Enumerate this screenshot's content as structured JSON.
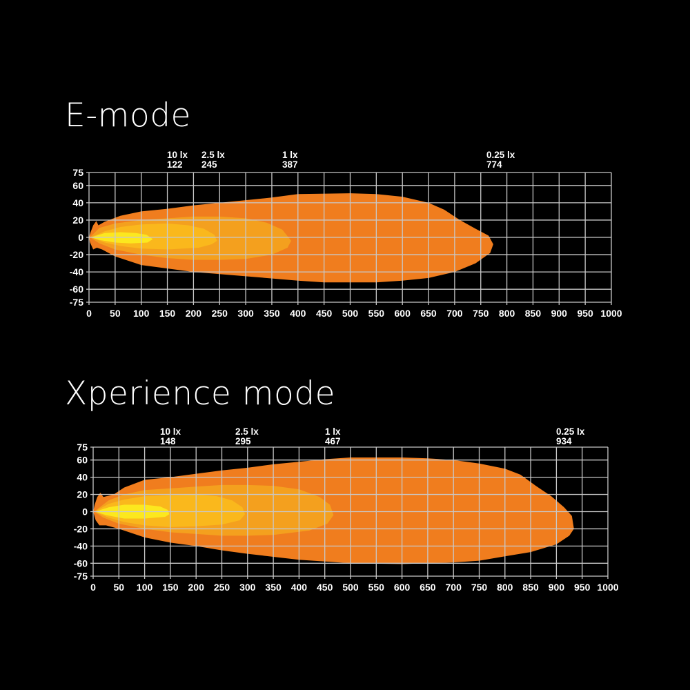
{
  "colors": {
    "background": "#000000",
    "grid": "#c8c8c8",
    "text": "#ffffff"
  },
  "chart_data": [
    {
      "type": "area",
      "title": "E-mode",
      "xlim": [
        0,
        1000
      ],
      "ylim": [
        -75,
        75
      ],
      "grid": true,
      "x_ticks": [
        0,
        50,
        100,
        150,
        200,
        250,
        300,
        350,
        400,
        450,
        500,
        550,
        600,
        650,
        700,
        750,
        800,
        850,
        900,
        950,
        1000
      ],
      "y_ticks": [
        75,
        60,
        40,
        20,
        0,
        -20,
        -40,
        -60,
        -75
      ],
      "annotations": [
        {
          "lux": "10 lx",
          "distance": "122"
        },
        {
          "lux": "2.5 lx",
          "distance": "245"
        },
        {
          "lux": "1 lx",
          "distance": "387"
        },
        {
          "lux": "0.25 lx",
          "distance": "774"
        }
      ],
      "contours": [
        {
          "lux": 0.25,
          "color": "#f07d1e",
          "points": [
            [
              0,
              0
            ],
            [
              3,
              6
            ],
            [
              8,
              14
            ],
            [
              14,
              19
            ],
            [
              18,
              14
            ],
            [
              30,
              18
            ],
            [
              60,
              25
            ],
            [
              100,
              30
            ],
            [
              150,
              33
            ],
            [
              200,
              37
            ],
            [
              250,
              40
            ],
            [
              300,
              43
            ],
            [
              350,
              46
            ],
            [
              400,
              50
            ],
            [
              500,
              51
            ],
            [
              550,
              50
            ],
            [
              600,
              47
            ],
            [
              650,
              40
            ],
            [
              680,
              32
            ],
            [
              710,
              20
            ],
            [
              740,
              10
            ],
            [
              765,
              2
            ],
            [
              774,
              -8
            ],
            [
              768,
              -18
            ],
            [
              740,
              -30
            ],
            [
              700,
              -40
            ],
            [
              650,
              -47
            ],
            [
              600,
              -50
            ],
            [
              550,
              -52
            ],
            [
              450,
              -52
            ],
            [
              400,
              -50
            ],
            [
              300,
              -45
            ],
            [
              200,
              -40
            ],
            [
              150,
              -36
            ],
            [
              100,
              -32
            ],
            [
              50,
              -22
            ],
            [
              25,
              -14
            ],
            [
              15,
              -12
            ],
            [
              8,
              -14
            ],
            [
              2,
              -6
            ]
          ]
        },
        {
          "lux": 1,
          "color": "#f4a01e",
          "points": [
            [
              2,
              0
            ],
            [
              20,
              11
            ],
            [
              50,
              16
            ],
            [
              100,
              20
            ],
            [
              150,
              22
            ],
            [
              200,
              24
            ],
            [
              250,
              24
            ],
            [
              300,
              22
            ],
            [
              340,
              17
            ],
            [
              370,
              9
            ],
            [
              387,
              -4
            ],
            [
              380,
              -12
            ],
            [
              350,
              -20
            ],
            [
              300,
              -25
            ],
            [
              250,
              -26
            ],
            [
              200,
              -26
            ],
            [
              150,
              -24
            ],
            [
              100,
              -20
            ],
            [
              50,
              -14
            ],
            [
              20,
              -7
            ]
          ]
        },
        {
          "lux": 2.5,
          "color": "#fab81c",
          "points": [
            [
              3,
              0
            ],
            [
              30,
              7
            ],
            [
              60,
              12
            ],
            [
              100,
              15
            ],
            [
              150,
              16
            ],
            [
              190,
              14
            ],
            [
              220,
              10
            ],
            [
              240,
              3
            ],
            [
              245,
              -4
            ],
            [
              235,
              -8
            ],
            [
              210,
              -12
            ],
            [
              150,
              -14
            ],
            [
              100,
              -13
            ],
            [
              60,
              -10
            ],
            [
              30,
              -6
            ]
          ]
        },
        {
          "lux": 10,
          "color": "#fce81e",
          "points": [
            [
              4,
              0
            ],
            [
              30,
              5
            ],
            [
              60,
              6
            ],
            [
              90,
              5
            ],
            [
              110,
              3
            ],
            [
              122,
              -2
            ],
            [
              112,
              -6
            ],
            [
              80,
              -7
            ],
            [
              50,
              -6
            ],
            [
              20,
              -3
            ]
          ]
        }
      ]
    },
    {
      "type": "area",
      "title": "Xperience mode",
      "xlim": [
        0,
        1000
      ],
      "ylim": [
        -75,
        75
      ],
      "grid": true,
      "x_ticks": [
        0,
        50,
        100,
        150,
        200,
        250,
        300,
        350,
        400,
        450,
        500,
        550,
        600,
        650,
        700,
        750,
        800,
        850,
        900,
        950,
        1000
      ],
      "y_ticks": [
        75,
        60,
        40,
        20,
        0,
        -20,
        -40,
        -60,
        -75
      ],
      "annotations": [
        {
          "lux": "10 lx",
          "distance": "148"
        },
        {
          "lux": "2.5 lx",
          "distance": "295"
        },
        {
          "lux": "1 lx",
          "distance": "467"
        },
        {
          "lux": "0.25 lx",
          "distance": "934"
        }
      ],
      "contours": [
        {
          "lux": 0.25,
          "color": "#f07d1e",
          "points": [
            [
              0,
              0
            ],
            [
              3,
              8
            ],
            [
              8,
              17
            ],
            [
              14,
              22
            ],
            [
              20,
              17
            ],
            [
              40,
              20
            ],
            [
              60,
              28
            ],
            [
              100,
              37
            ],
            [
              150,
              40
            ],
            [
              200,
              44
            ],
            [
              250,
              48
            ],
            [
              300,
              51
            ],
            [
              350,
              55
            ],
            [
              400,
              58
            ],
            [
              450,
              61
            ],
            [
              500,
              63
            ],
            [
              600,
              63
            ],
            [
              650,
              62
            ],
            [
              700,
              60
            ],
            [
              750,
              56
            ],
            [
              800,
              50
            ],
            [
              830,
              43
            ],
            [
              860,
              30
            ],
            [
              890,
              18
            ],
            [
              915,
              5
            ],
            [
              930,
              -5
            ],
            [
              934,
              -20
            ],
            [
              925,
              -28
            ],
            [
              900,
              -38
            ],
            [
              850,
              -47
            ],
            [
              800,
              -52
            ],
            [
              750,
              -57
            ],
            [
              700,
              -59
            ],
            [
              600,
              -61
            ],
            [
              500,
              -60
            ],
            [
              400,
              -56
            ],
            [
              300,
              -49
            ],
            [
              250,
              -45
            ],
            [
              200,
              -40
            ],
            [
              150,
              -36
            ],
            [
              100,
              -30
            ],
            [
              50,
              -20
            ],
            [
              25,
              -16
            ],
            [
              12,
              -16
            ],
            [
              5,
              -10
            ]
          ]
        },
        {
          "lux": 1,
          "color": "#f4a01e",
          "points": [
            [
              2,
              0
            ],
            [
              30,
              13
            ],
            [
              60,
              20
            ],
            [
              100,
              25
            ],
            [
              150,
              27
            ],
            [
              200,
              29
            ],
            [
              250,
              31
            ],
            [
              300,
              31
            ],
            [
              350,
              30
            ],
            [
              400,
              26
            ],
            [
              440,
              17
            ],
            [
              460,
              8
            ],
            [
              467,
              -4
            ],
            [
              455,
              -14
            ],
            [
              420,
              -22
            ],
            [
              350,
              -27
            ],
            [
              300,
              -28
            ],
            [
              250,
              -28
            ],
            [
              200,
              -26
            ],
            [
              150,
              -24
            ],
            [
              100,
              -20
            ],
            [
              50,
              -14
            ],
            [
              20,
              -7
            ]
          ]
        },
        {
          "lux": 2.5,
          "color": "#fab81c",
          "points": [
            [
              3,
              0
            ],
            [
              30,
              9
            ],
            [
              60,
              14
            ],
            [
              100,
              18
            ],
            [
              150,
              19
            ],
            [
              200,
              20
            ],
            [
              240,
              18
            ],
            [
              270,
              13
            ],
            [
              290,
              5
            ],
            [
              295,
              -3
            ],
            [
              285,
              -10
            ],
            [
              250,
              -15
            ],
            [
              200,
              -17
            ],
            [
              150,
              -18
            ],
            [
              100,
              -16
            ],
            [
              60,
              -12
            ],
            [
              30,
              -7
            ]
          ]
        },
        {
          "lux": 10,
          "color": "#fce81e",
          "points": [
            [
              4,
              0
            ],
            [
              30,
              5
            ],
            [
              60,
              8
            ],
            [
              100,
              8
            ],
            [
              130,
              6
            ],
            [
              145,
              2
            ],
            [
              148,
              -3
            ],
            [
              140,
              -6
            ],
            [
              100,
              -8
            ],
            [
              60,
              -8
            ],
            [
              25,
              -4
            ]
          ]
        }
      ]
    }
  ]
}
